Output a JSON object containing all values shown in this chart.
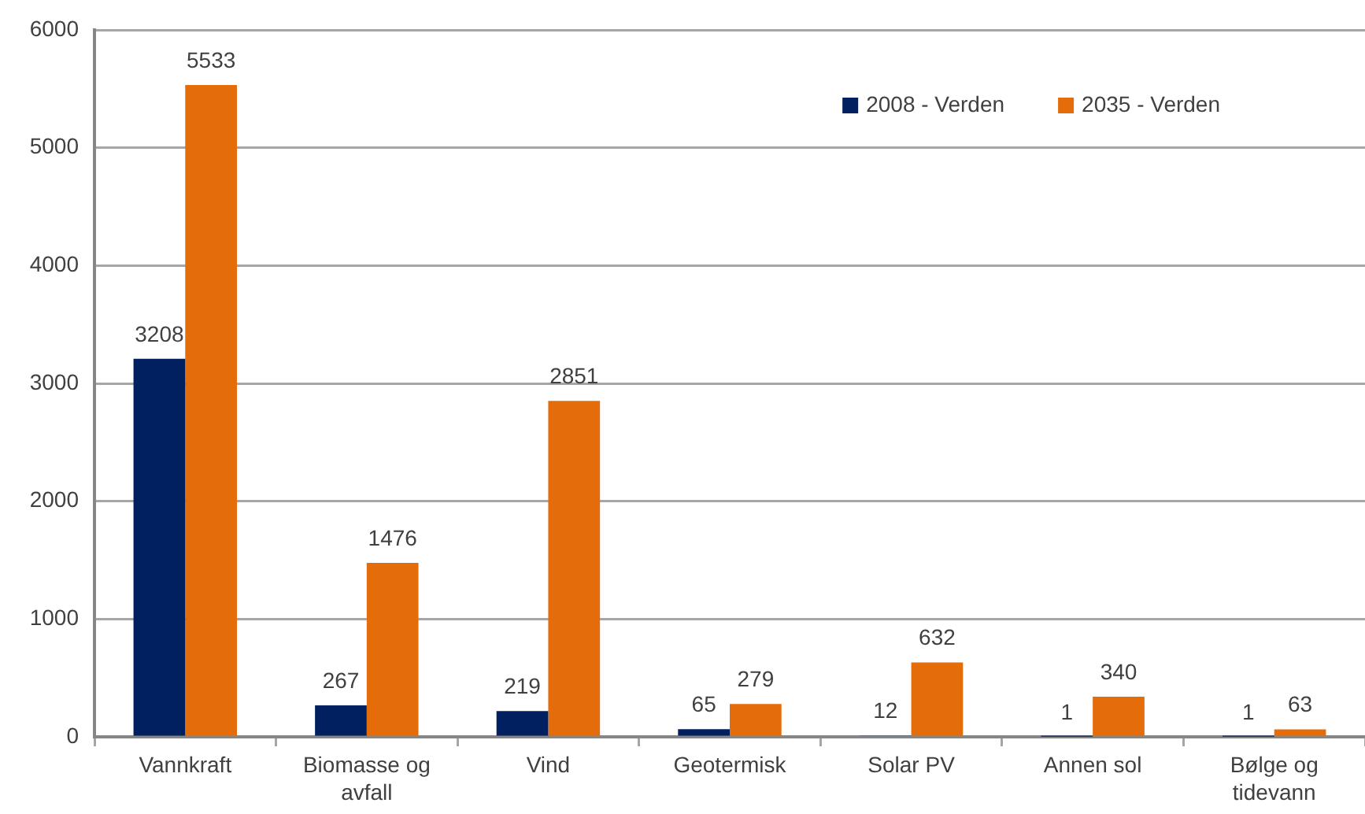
{
  "chart_data": {
    "type": "bar",
    "categories": [
      "Vannkraft",
      "Biomasse og avfall",
      "Vind",
      "Geotermisk",
      "Solar PV",
      "Annen sol",
      "Bølge og tidevann"
    ],
    "series": [
      {
        "name": "2008 - Verden",
        "color": "#002060",
        "values": [
          3208,
          267,
          219,
          65,
          12,
          1,
          1
        ]
      },
      {
        "name": "2035 - Verden",
        "color": "#e46c0a",
        "values": [
          5533,
          1476,
          2851,
          279,
          632,
          340,
          63
        ]
      }
    ],
    "ylim": [
      0,
      6000
    ],
    "yticks": [
      0,
      1000,
      2000,
      3000,
      4000,
      5000,
      6000
    ],
    "grid": "y",
    "legend": "top right",
    "data_labels": true
  }
}
